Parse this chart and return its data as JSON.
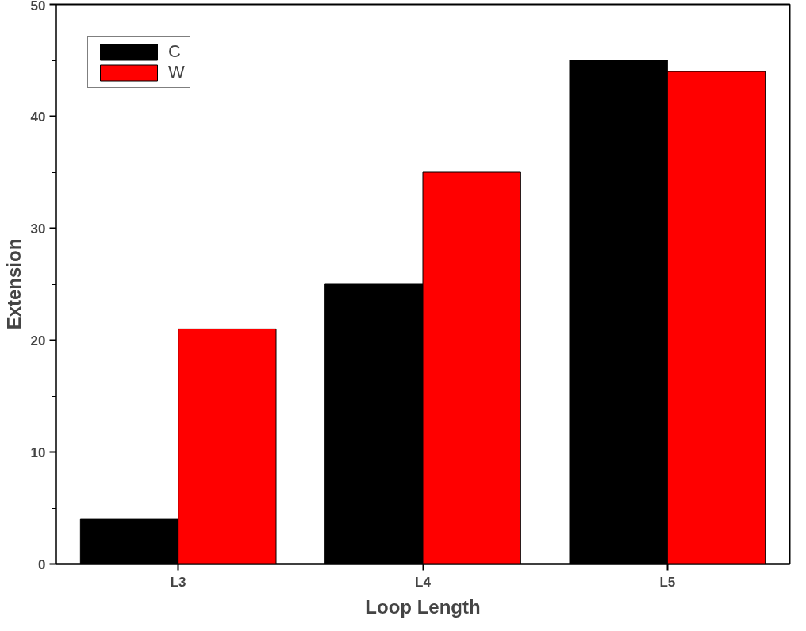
{
  "chart_data": {
    "type": "bar",
    "xlabel": "Loop Length",
    "ylabel": "Extension",
    "categories": [
      "L3",
      "L4",
      "L5"
    ],
    "series": [
      {
        "name": "C",
        "color": "#000000",
        "values": [
          4,
          25,
          45
        ]
      },
      {
        "name": "W",
        "color": "#ff0000",
        "values": [
          21,
          35,
          44
        ]
      }
    ],
    "ylim": [
      0,
      50
    ],
    "yticks": [
      0,
      10,
      20,
      30,
      40,
      50
    ],
    "grid": false,
    "legend": "top left"
  }
}
